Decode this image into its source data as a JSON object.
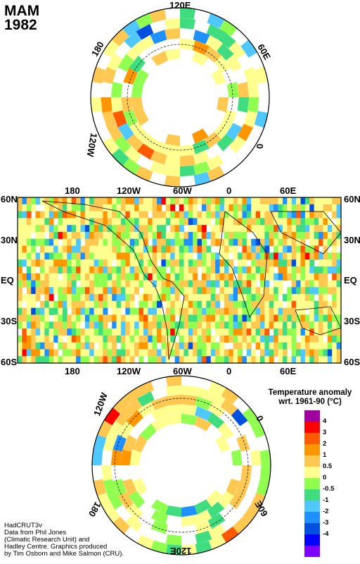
{
  "header": {
    "season": "MAM",
    "year": "1982"
  },
  "north_map": {
    "labels": {
      "top": "120E",
      "right": "0",
      "upper_right": "60E",
      "upper_left": "180",
      "lower_left": "120W"
    }
  },
  "world_map": {
    "top_lon_labels": [
      "180",
      "120W",
      "60W",
      "0",
      "60E"
    ],
    "bottom_lon_labels": [
      "180",
      "120W",
      "60W",
      "0",
      "60E"
    ],
    "lat_labels_left": [
      "60N",
      "30N",
      "EQ",
      "30S",
      "60S"
    ],
    "lat_labels_right": [
      "60N",
      "30N",
      "EQ",
      "30S",
      "60S"
    ]
  },
  "south_map": {
    "labels": {
      "bottom": "120E",
      "left": "120W",
      "right": "0",
      "lower_left": "180",
      "lower_right": "60E"
    }
  },
  "legend": {
    "title_line1": "Temperature anomaly",
    "title_line2": "wrt. 1961-90  (°C)",
    "bins": [
      {
        "label": "4",
        "color": "#a000a0"
      },
      {
        "label": "3",
        "color": "#ff0000"
      },
      {
        "label": "2",
        "color": "#ff5a00"
      },
      {
        "label": "1",
        "color": "#ff9600"
      },
      {
        "label": "0.5",
        "color": "#ffc850"
      },
      {
        "label": "0",
        "color": "#ffff90"
      },
      {
        "label": "-0.5",
        "color": "#90ff50"
      },
      {
        "label": "-1",
        "color": "#40dc80"
      },
      {
        "label": "-2",
        "color": "#50c8ff"
      },
      {
        "label": "-3",
        "color": "#1e90ff"
      },
      {
        "label": "-4",
        "color": "#0050e0"
      },
      {
        "label": "",
        "color": "#0000ff"
      },
      {
        "label": "",
        "color": "#8000ff"
      }
    ]
  },
  "credits": {
    "lines": [
      "HadCRUT3v",
      "Data from Phil Jones",
      "(Climatic Research Unit) and",
      "Hadley Centre.  Graphics produced",
      "by Tim Osborn and Mike Salmon (CRU)."
    ]
  }
}
